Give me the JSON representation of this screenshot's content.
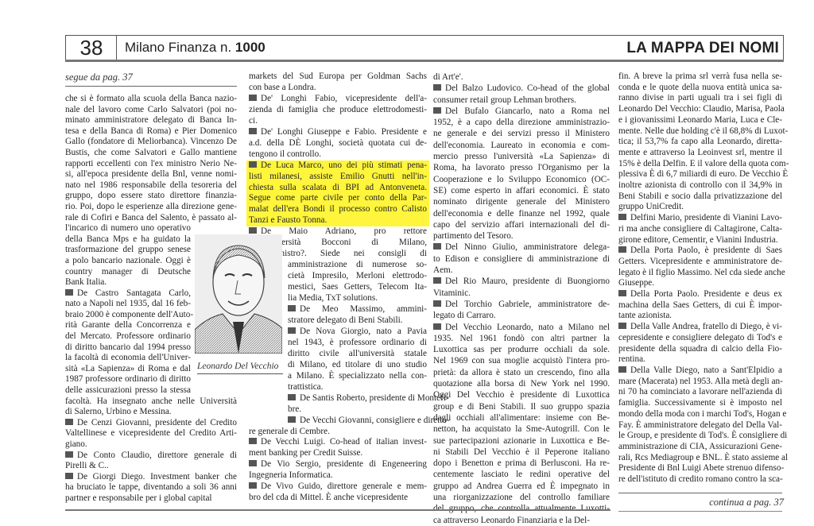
{
  "header": {
    "page_number": "38",
    "publication": "Milano Finanza n.",
    "issue": "1000",
    "section_title": "LA MAPPA DEI NOMI"
  },
  "segue": "segue da pag. 37",
  "continua": "continua a pag. 37",
  "photo": {
    "caption": "Leonardo Del Vecchio"
  },
  "colors": {
    "highlight": "#fff53c",
    "bullet": "#555555"
  },
  "columns": [
    {
      "items": [
        {
          "bullet": false,
          "lines": [
            "che si è formato alla scuola della Banca nazio-",
            "nale del lavoro come Carlo Salvatori (poi no-",
            "minato amministratore delegato di Banca In-",
            "tesa e della Banca di Roma) e Pier Domenico",
            "Gallo (fondatore di Meliorbanca). Vincenzo De",
            "Bustis, che come Salvatori e Gallo mantiene",
            "rapporti eccellenti con l'ex ministro Nerio Ne-",
            "si, all'epoca presidente della Bnl, venne nomi-",
            "nato nel 1986 responsabile della tesoreria del",
            "gruppo, dopo essere stato direttore finanzia-",
            "rio. Poi, dopo le esperienze alla direzione gene-",
            "rale di Cofiri e Banca del Salento, è passato al-",
            "l'incarico di numero uno operativo",
            "della Banca Mps e ha guidato la",
            "trasformazione del gruppo senese",
            "a polo bancario nazionale. Oggi è",
            "country manager di Deutsche",
            "Bank Italia."
          ]
        },
        {
          "bullet": true,
          "lines": [
            "De Castro Santagata Carlo,",
            "nato a Napoli nel 1935, dal 16 feb-",
            "braio 2000 è componente dell'Auto-",
            "rità Garante della Concorrenza e",
            "del Mercato. Professore ordinario",
            "di diritto bancario dal 1994 presso",
            "la facoltà di economia dell'Univer-",
            "sità «La Sapienza» di Roma e dal",
            "1987 professore ordinario di diritto",
            "delle assicurazioni presso la stessa",
            "facoltà. Ha insegnato anche nelle Università",
            "di Salerno, Urbino e Messina."
          ]
        },
        {
          "bullet": true,
          "lines": [
            "De Cenzi Giovanni, presidente del Credito",
            "Valtellinese e vicepresidente del Credito Arti-",
            "giano."
          ]
        },
        {
          "bullet": true,
          "lines": [
            "De Conto Claudio, direttore generale di",
            "Pirelli & C.."
          ]
        },
        {
          "bullet": true,
          "lines": [
            "De Giorgi Diego. Investment banker che",
            "ha bruciato le tappe, diventando a soli 36 anni",
            "partner e responsabile per i global capital"
          ]
        }
      ]
    },
    {
      "items": [
        {
          "bullet": false,
          "lines": [
            "markets del Sud Europa per Goldman Sachs",
            "con base a Londra."
          ]
        },
        {
          "bullet": true,
          "lines": [
            "De' Longhi Fabio, vicepresidente dell'a-",
            "zienda di famiglia che produce elettrodomesti-",
            "ci."
          ]
        },
        {
          "bullet": true,
          "lines": [
            "De' Longhi Giuseppe e Fabio. Presidente e",
            "a.d. della DÈ Longhi, società quotata cui de-",
            "tengono il controllo."
          ]
        },
        {
          "bullet": true,
          "highlight": true,
          "lines": [
            "De Luca Marco, uno dei più stimati pena-",
            "listi milanesi, assiste Emilio Gnutti nell'in-",
            "chiesta sulla scalata di BPI ad Antonveneta.",
            "Segue come parte civile per conto della Par-",
            "malat dell'era Bondi il processo contro Calisto",
            "Tanzi e Fausto Tonna."
          ]
        },
        {
          "bullet": true,
          "lines": [
            "De Maio Adriano, pro rettore",
            "dell'Università Bocconi di Milano,",
            "ex ministro?. Siede nei consigli di",
            "amministrazione di numerose so-",
            "cietà  Impresilo, Merloni elettrodo-",
            "mestici, Saes Getters, Telecom Ita-",
            "lia Media, TxT solutions."
          ]
        },
        {
          "bullet": true,
          "lines": [
            "De Meo Massimo, ammini-",
            "stratore delegato di Beni Stabili."
          ]
        },
        {
          "bullet": true,
          "lines": [
            "De Nova Giorgio, nato a Pavia",
            "nel 1943, è professore ordinario di",
            "diritto civile all'università statale",
            "di Milano, ed titolare di uno studio",
            "a Milano. È specializzato nella con-",
            "trattistica."
          ]
        },
        {
          "bullet": true,
          "lines": [
            "De Santis Roberto, presidente di Montefi-",
            "bre."
          ]
        },
        {
          "bullet": true,
          "lines": [
            "De Vecchi Giovanni, consigliere e diretto-",
            "re generale di Cembre."
          ]
        },
        {
          "bullet": true,
          "lines": [
            "De Vecchi Luigi. Co-head of italian invest-",
            "ment banking per Credit Suisse."
          ]
        },
        {
          "bullet": true,
          "lines": [
            "De Vio Sergio, presidente di Engeneering",
            "Ingegneria Informatica."
          ]
        },
        {
          "bullet": true,
          "lines": [
            "De Vivo Guido, direttore generale e mem-",
            "bro del cda di Mittel. È anche vicepresidente"
          ]
        }
      ]
    },
    {
      "items": [
        {
          "bullet": false,
          "lines": [
            "di Art'e'."
          ]
        },
        {
          "bullet": true,
          "lines": [
            "Del Balzo Ludovico. Co-head of the global",
            "consumer retail group Lehman brothers."
          ]
        },
        {
          "bullet": true,
          "lines": [
            "Del Bufalo Giancarlo, nato a Roma nel",
            "1952, è a capo della direzione amministrazio-",
            "ne generale e dei servizi presso il Ministero",
            "dell'economia. Laureato in economia e com-",
            "mercio presso l'università «La Sapienza» di",
            "Roma, ha lavorato presso l'Organismo per la",
            "Cooperazione e lo Sviluppo Economico (OC-",
            "SE) come esperto in affari economici. È stato",
            "nominato dirigente generale del Ministero",
            "dell'economia e delle finanze nel 1992, quale",
            "capo del servizio affari internazionali del di-",
            "partimento del Tesoro."
          ]
        },
        {
          "bullet": true,
          "lines": [
            "Del Ninno Giulio, amministratore delega-",
            "to Edison e consigliere di amministrazione di",
            "Aem."
          ]
        },
        {
          "bullet": true,
          "lines": [
            "Del Rio Mauro, presidente di Buongiorno",
            "Vitaminic."
          ]
        },
        {
          "bullet": true,
          "lines": [
            "Del Torchio Gabriele, amministratore de-",
            "legato di Carraro."
          ]
        },
        {
          "bullet": true,
          "lines": [
            "Del Vecchio Leonardo, nato a Milano nel",
            "1935. Nel 1961 fondò con altri partner la",
            "Luxottica sas per produrre occhiali da sole.",
            "Nel 1969 con sua moglie acquistò l'intera pro-",
            "prietà: da allora è stato un crescendo, fino alla",
            "quotazione alla borsa di New York nel 1990.",
            "Oggi Del Vecchio è presidente di Luxottica",
            "group e di Beni Stabili. Il suo gruppo spazia",
            "dagli occhiali all'alimentare: insieme con Be-",
            "netton, ha acquistato la Sme-Autogrill. Con le",
            "sue partecipazioni azionarie in Luxottica e Be-",
            "ni Stabili Del Vecchio è il Peperone italiano",
            "dopo i Benetton e prima di  Berlusconi.  Ha re-",
            "centemente lasciato le redini operative del",
            "gruppo ad Andrea Guerra ed È impegnato in",
            "una riorganizzazione del controllo familiare",
            "del gruppo, che controlla attualmente Luxotti-",
            "ca attraverso Leonardo Finanziaria e la Del-"
          ]
        }
      ]
    },
    {
      "items": [
        {
          "bullet": false,
          "lines": [
            "fin. A breve la prima srl verrà fusa nella se-",
            "conda e le quote della nuova entità unica sa-",
            "ranno divise in parti uguali tra i sei figli di",
            "Leonardo Del Vecchio: Claudio, Marisa, Paola",
            "e i giovanissimi Leonardo Maria, Luca e Cle-",
            "mente. Nelle due holding c'è il 68,8% di Luxot-",
            "tica; il 53,7% fa capo alla Leonardo, diretta-",
            "mente e attraverso la Leoinvest srl, mentre il",
            "15% è della Delfin. E il valore della quota com-",
            "plessiva È di 6,7 miliardi di euro. De Vecchio È",
            "inoltre azionista di controllo con il 34,9% in",
            "Beni Stabili e socio dalla privatizzazione del",
            "gruppo UniCredit."
          ]
        },
        {
          "bullet": true,
          "lines": [
            "Delfini Mario, presidente di Vianini Lavo-",
            "ri ma anche consigliere di Caltagirone, Calta-",
            "girone editore, Cementir, e Vianini Industria."
          ]
        },
        {
          "bullet": true,
          "lines": [
            "Della Porta Paolo, è presidente di Saes",
            "Getters. Vicepresidente e amministratore de-",
            "legato è il figlio Massimo. Nel cda siede anche",
            "Giuseppe."
          ]
        },
        {
          "bullet": true,
          "lines": [
            "Della Porta Paolo. Presidente e deus ex",
            "machina della Saes Getters, di cui È impor-",
            "tante azionista."
          ]
        },
        {
          "bullet": true,
          "lines": [
            "Della Valle Andrea, fratello di Diego, è vi-",
            "cepresidente e consigliere delegato di Tod's e",
            "presidente della squadra di calcio della Fio-",
            "rentina."
          ]
        },
        {
          "bullet": true,
          "lines": [
            "Della Valle Diego, nato a Sant'Elpidio a",
            "mare (Macerata) nel 1953. Alla metà degli an-",
            "ni 70 ha cominciato a lavorare nell'azienda di",
            "famiglia. Successivamente si è imposto nel",
            "mondo della moda con i marchi Tod's, Hogan e",
            "Fay. È amministratore delegato del Della Val-",
            "le Group, e presidente di Tod's. È consigliere di",
            "amministrazione di CIA, Assicurazioni Gene-",
            "rali, Rcs Mediagroup e BNL. È stato assieme al",
            "Presidente di Bnl Luigi Abete strenuo difenso-",
            "re dell'istituto di credito romano contro la sca-"
          ]
        }
      ]
    }
  ]
}
